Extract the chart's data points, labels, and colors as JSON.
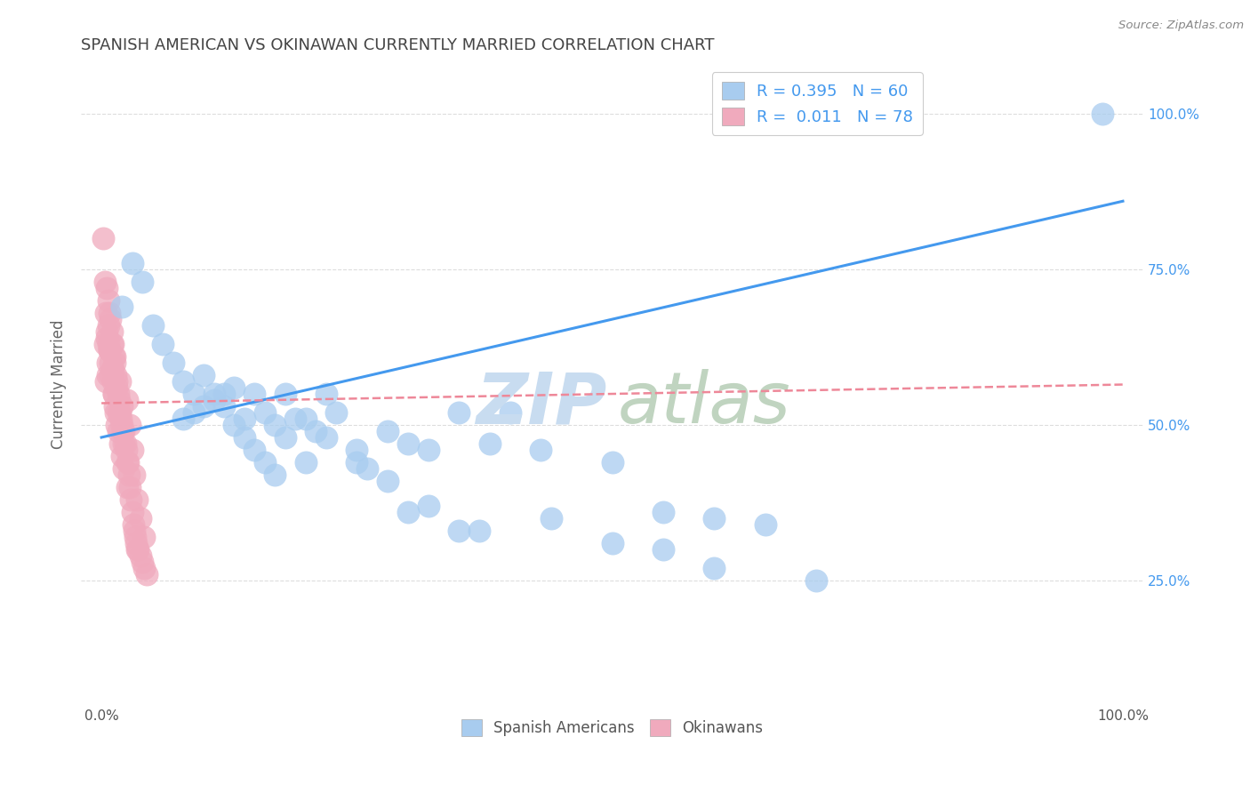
{
  "title": "SPANISH AMERICAN VS OKINAWAN CURRENTLY MARRIED CORRELATION CHART",
  "source": "Source: ZipAtlas.com",
  "ylabel": "Currently Married",
  "xlim": [
    -0.02,
    1.02
  ],
  "ylim": [
    0.05,
    1.08
  ],
  "blue_color": "#A8CCEF",
  "pink_color": "#F0AABD",
  "blue_line_color": "#4499EE",
  "pink_line_color": "#EE8899",
  "background_color": "#FFFFFF",
  "grid_color": "#DDDDDD",
  "title_color": "#444444",
  "blue_line_start_y": 0.48,
  "blue_line_end_y": 0.86,
  "pink_line_start_y": 0.535,
  "pink_line_end_y": 0.565,
  "watermark_zip_color": "#C8DCF0",
  "watermark_atlas_color": "#C0D4C0",
  "right_tick_color": "#4499EE",
  "ytick_values": [
    0.25,
    0.5,
    0.75,
    1.0
  ],
  "ytick_labels": [
    "25.0%",
    "50.0%",
    "75.0%",
    "100.0%"
  ],
  "blue_scatter_x": [
    0.02,
    0.03,
    0.04,
    0.05,
    0.06,
    0.07,
    0.08,
    0.09,
    0.1,
    0.11,
    0.12,
    0.13,
    0.14,
    0.15,
    0.16,
    0.17,
    0.18,
    0.19,
    0.2,
    0.21,
    0.22,
    0.23,
    0.25,
    0.26,
    0.28,
    0.3,
    0.32,
    0.35,
    0.38,
    0.4,
    0.43,
    0.08,
    0.09,
    0.1,
    0.11,
    0.12,
    0.13,
    0.14,
    0.15,
    0.16,
    0.17,
    0.18,
    0.2,
    0.22,
    0.25,
    0.28,
    0.32,
    0.37,
    0.44,
    0.5,
    0.55,
    0.6,
    0.65,
    0.3,
    0.35,
    0.5,
    0.55,
    0.6,
    0.7,
    0.98
  ],
  "blue_scatter_y": [
    0.69,
    0.76,
    0.73,
    0.66,
    0.63,
    0.6,
    0.57,
    0.55,
    0.58,
    0.55,
    0.53,
    0.56,
    0.51,
    0.55,
    0.52,
    0.5,
    0.48,
    0.51,
    0.44,
    0.49,
    0.55,
    0.52,
    0.46,
    0.43,
    0.49,
    0.47,
    0.46,
    0.52,
    0.47,
    0.52,
    0.46,
    0.51,
    0.52,
    0.53,
    0.54,
    0.55,
    0.5,
    0.48,
    0.46,
    0.44,
    0.42,
    0.55,
    0.51,
    0.48,
    0.44,
    0.41,
    0.37,
    0.33,
    0.35,
    0.44,
    0.36,
    0.35,
    0.34,
    0.36,
    0.33,
    0.31,
    0.3,
    0.27,
    0.25,
    1.0
  ],
  "pink_scatter_x": [
    0.002,
    0.003,
    0.004,
    0.005,
    0.005,
    0.006,
    0.007,
    0.007,
    0.008,
    0.008,
    0.009,
    0.009,
    0.01,
    0.01,
    0.011,
    0.011,
    0.012,
    0.012,
    0.013,
    0.013,
    0.014,
    0.014,
    0.015,
    0.015,
    0.016,
    0.016,
    0.017,
    0.018,
    0.018,
    0.019,
    0.02,
    0.02,
    0.021,
    0.022,
    0.022,
    0.023,
    0.024,
    0.025,
    0.025,
    0.026,
    0.027,
    0.028,
    0.029,
    0.03,
    0.031,
    0.032,
    0.033,
    0.034,
    0.035,
    0.036,
    0.038,
    0.04,
    0.042,
    0.044,
    0.003,
    0.004,
    0.005,
    0.006,
    0.007,
    0.008,
    0.009,
    0.01,
    0.011,
    0.012,
    0.013,
    0.015,
    0.016,
    0.018,
    0.02,
    0.022,
    0.025,
    0.028,
    0.03,
    0.032,
    0.035,
    0.038,
    0.042
  ],
  "pink_scatter_y": [
    0.8,
    0.63,
    0.57,
    0.72,
    0.65,
    0.58,
    0.7,
    0.63,
    0.68,
    0.62,
    0.67,
    0.6,
    0.65,
    0.59,
    0.63,
    0.57,
    0.61,
    0.55,
    0.6,
    0.53,
    0.58,
    0.52,
    0.57,
    0.5,
    0.55,
    0.49,
    0.54,
    0.52,
    0.47,
    0.51,
    0.5,
    0.45,
    0.49,
    0.47,
    0.43,
    0.47,
    0.46,
    0.44,
    0.4,
    0.44,
    0.42,
    0.4,
    0.38,
    0.36,
    0.34,
    0.33,
    0.32,
    0.31,
    0.3,
    0.3,
    0.29,
    0.28,
    0.27,
    0.26,
    0.73,
    0.68,
    0.64,
    0.6,
    0.66,
    0.62,
    0.58,
    0.63,
    0.59,
    0.55,
    0.61,
    0.56,
    0.52,
    0.57,
    0.53,
    0.49,
    0.54,
    0.5,
    0.46,
    0.42,
    0.38,
    0.35,
    0.32
  ]
}
